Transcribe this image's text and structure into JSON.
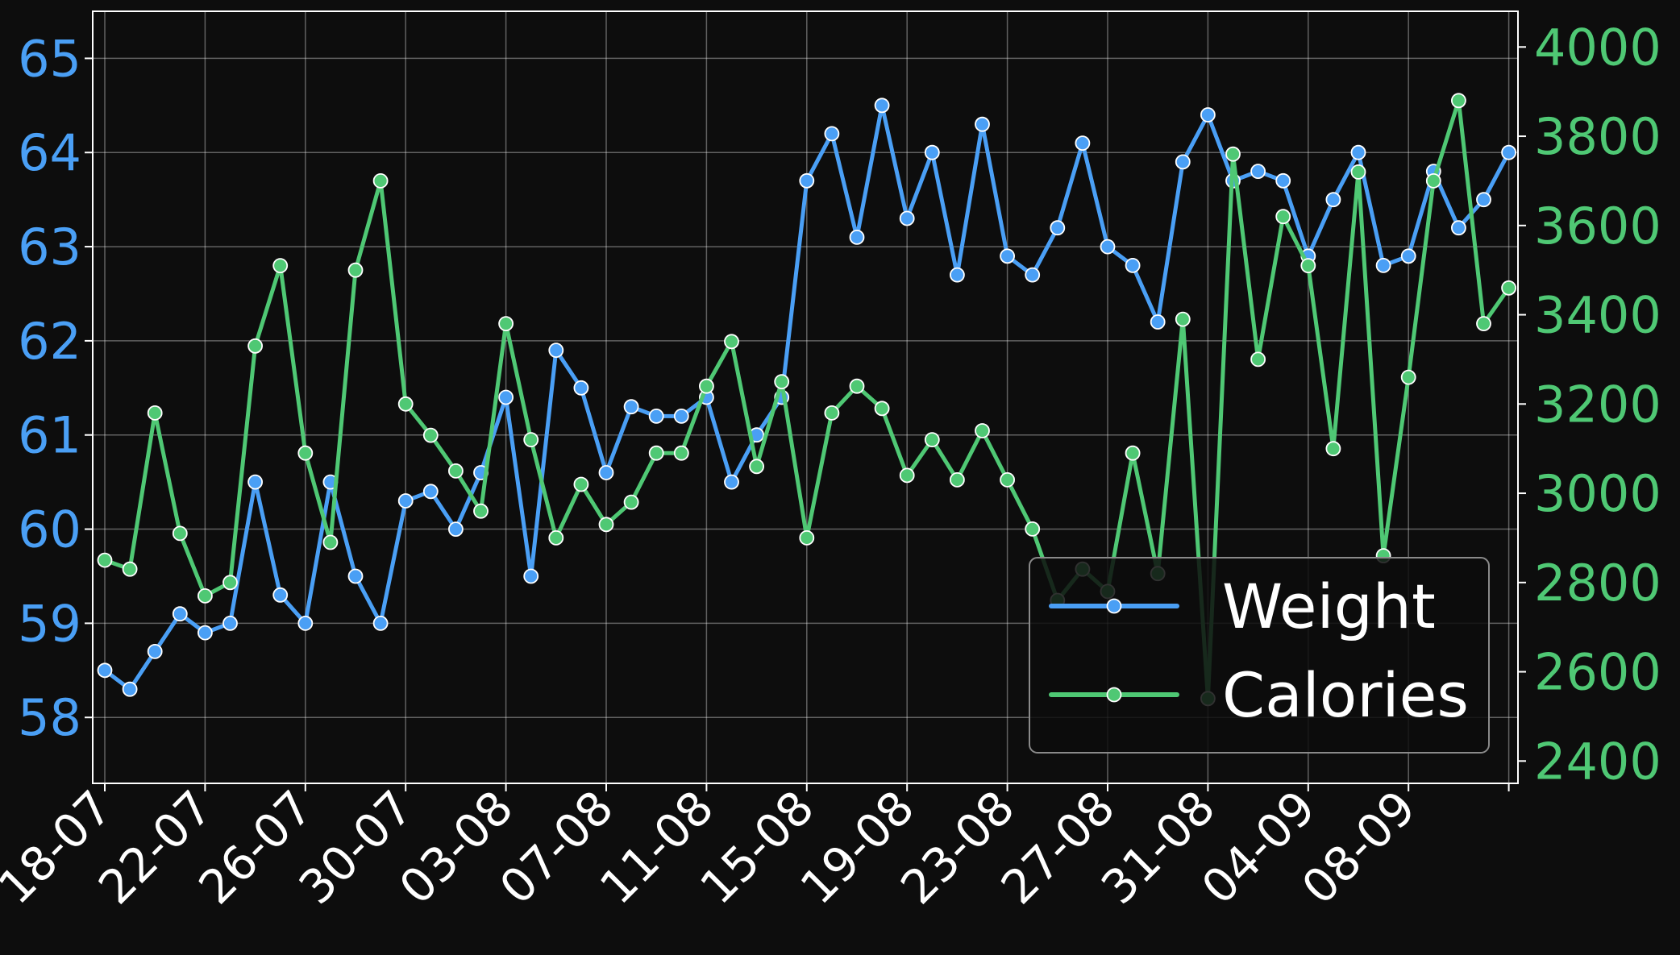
{
  "chart_data": {
    "type": "line",
    "background": "#0d0d0d",
    "grid": true,
    "legend_position": "lower-right",
    "x_dates": [
      "2024-07-18",
      "2024-07-19",
      "2024-07-20",
      "2024-07-21",
      "2024-07-22",
      "2024-07-23",
      "2024-07-24",
      "2024-07-25",
      "2024-07-26",
      "2024-07-27",
      "2024-07-28",
      "2024-07-29",
      "2024-07-30",
      "2024-07-31",
      "2024-08-01",
      "2024-08-02",
      "2024-08-03",
      "2024-08-04",
      "2024-08-05",
      "2024-08-06",
      "2024-08-07",
      "2024-08-08",
      "2024-08-09",
      "2024-08-10",
      "2024-08-11",
      "2024-08-12",
      "2024-08-13",
      "2024-08-14",
      "2024-08-15",
      "2024-08-16",
      "2024-08-17",
      "2024-08-18",
      "2024-08-19",
      "2024-08-20",
      "2024-08-21",
      "2024-08-22",
      "2024-08-23",
      "2024-08-24",
      "2024-08-25",
      "2024-08-26",
      "2024-08-27",
      "2024-08-28",
      "2024-08-29",
      "2024-08-30",
      "2024-08-31",
      "2024-09-01",
      "2024-09-02",
      "2024-09-03",
      "2024-09-04",
      "2024-09-05",
      "2024-09-06",
      "2024-09-07",
      "2024-09-08",
      "2024-09-09",
      "2024-09-10",
      "2024-09-11",
      "2024-09-12"
    ],
    "x_tick_labels": [
      "18-07",
      "22-07",
      "26-07",
      "30-07",
      "03-08",
      "07-08",
      "11-08",
      "15-08",
      "19-08",
      "23-08",
      "27-08",
      "31-08",
      "04-09",
      "08-09"
    ],
    "left_axis": {
      "ylim": [
        57.3,
        65.5
      ],
      "ticks": [
        58,
        59,
        60,
        61,
        62,
        63,
        64,
        65
      ],
      "color": "#4a9ff5"
    },
    "right_axis": {
      "ylim": [
        2350,
        4080
      ],
      "ticks": [
        2400,
        2600,
        2800,
        3000,
        3200,
        3400,
        3600,
        3800,
        4000
      ],
      "color": "#4fc874"
    },
    "series": [
      {
        "name": "Weight",
        "axis": "left",
        "color": "#4a9ff5",
        "values": [
          58.5,
          58.3,
          58.7,
          59.1,
          58.9,
          59.0,
          60.5,
          59.3,
          59.0,
          60.5,
          59.5,
          59.0,
          60.3,
          60.4,
          60.0,
          60.6,
          61.4,
          59.5,
          61.9,
          61.5,
          60.6,
          61.3,
          61.2,
          61.2,
          61.4,
          60.5,
          61.0,
          61.4,
          63.7,
          64.2,
          63.1,
          64.5,
          63.3,
          64.0,
          62.7,
          64.3,
          62.9,
          62.7,
          63.2,
          64.1,
          63.0,
          62.8,
          62.2,
          63.9,
          64.4,
          63.7,
          63.8,
          63.7,
          62.9,
          63.5,
          64.0,
          62.8,
          62.9,
          63.8,
          63.2,
          63.5,
          64.0
        ]
      },
      {
        "name": "Calories",
        "axis": "right",
        "color": "#4fc874",
        "values": [
          2850,
          2830,
          3180,
          2910,
          2770,
          2800,
          3330,
          3510,
          3090,
          2890,
          3500,
          3700,
          3200,
          3130,
          3050,
          2960,
          3380,
          3120,
          2900,
          3020,
          2930,
          2980,
          3090,
          3090,
          3240,
          3340,
          3060,
          3250,
          2900,
          3180,
          3240,
          3190,
          3040,
          3120,
          3030,
          3140,
          3030,
          2920,
          2760,
          2830,
          2780,
          3090,
          2820,
          3390,
          2540,
          3760,
          3300,
          3620,
          3510,
          3100,
          3720,
          2860,
          3260,
          3700,
          3880,
          3380,
          3460
        ]
      }
    ]
  }
}
